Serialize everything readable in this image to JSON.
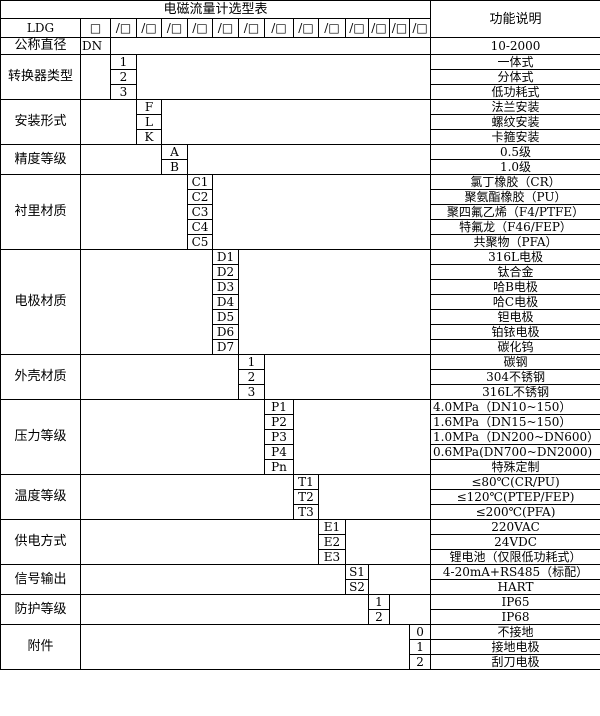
{
  "header": {
    "title": "电磁流量计选型表",
    "function_label": "功能说明",
    "model_prefix": "LDG",
    "first_box": "□",
    "slot_boxes": [
      "/□",
      "/□",
      "/□",
      "/□",
      "/□",
      "/□",
      "/□",
      "/□",
      "/□",
      "/□",
      "/□",
      "/□",
      "/□"
    ]
  },
  "nominal": {
    "label": "公称直径",
    "code": "DN",
    "desc": "10-2000"
  },
  "sections": [
    {
      "label": "转换器类型",
      "col": 2,
      "rows": [
        {
          "code": "1",
          "desc": "一体式"
        },
        {
          "code": "2",
          "desc": "分体式"
        },
        {
          "code": "3",
          "desc": "低功耗式"
        }
      ]
    },
    {
      "label": "安装形式",
      "col": 3,
      "rows": [
        {
          "code": "F",
          "desc": "法兰安装"
        },
        {
          "code": "L",
          "desc": "螺纹安装"
        },
        {
          "code": "K",
          "desc": "卡箍安装"
        }
      ]
    },
    {
      "label": "精度等级",
      "col": 4,
      "rows": [
        {
          "code": "A",
          "desc": "0.5级"
        },
        {
          "code": "B",
          "desc": "1.0级"
        }
      ]
    },
    {
      "label": "衬里材质",
      "col": 5,
      "rows": [
        {
          "code": "C1",
          "desc": "氯丁橡胶（CR）"
        },
        {
          "code": "C2",
          "desc": "聚氨酯橡胶（PU）"
        },
        {
          "code": "C3",
          "desc": "聚四氟乙烯（F4/PTFE）"
        },
        {
          "code": "C4",
          "desc": "特氟龙（F46/FEP）"
        },
        {
          "code": "C5",
          "desc": "共聚物（PFA）"
        }
      ]
    },
    {
      "label": "电极材质",
      "col": 6,
      "rows": [
        {
          "code": "D1",
          "desc": "316L电极"
        },
        {
          "code": "D2",
          "desc": "钛合金"
        },
        {
          "code": "D3",
          "desc": "哈B电极"
        },
        {
          "code": "D4",
          "desc": "哈C电极"
        },
        {
          "code": "D5",
          "desc": "钽电极"
        },
        {
          "code": "D6",
          "desc": "铂铱电极"
        },
        {
          "code": "D7",
          "desc": "碳化钨"
        }
      ]
    },
    {
      "label": "外壳材质",
      "col": 7,
      "rows": [
        {
          "code": "1",
          "desc": "碳钢"
        },
        {
          "code": "2",
          "desc": "304不锈钢"
        },
        {
          "code": "3",
          "desc": "316L不锈钢"
        }
      ]
    },
    {
      "label": "压力等级",
      "col": 8,
      "rows": [
        {
          "code": "P1",
          "desc": "4.0MPa（DN10~150）",
          "align": "left"
        },
        {
          "code": "P2",
          "desc": "1.6MPa（DN15~150）",
          "align": "left"
        },
        {
          "code": "P3",
          "desc": "1.0MPa（DN200~DN600）",
          "align": "left"
        },
        {
          "code": "P4",
          "desc": "0.6MPa(DN700~DN2000)",
          "align": "left"
        },
        {
          "code": "Pn",
          "desc": "特殊定制"
        }
      ]
    },
    {
      "label": "温度等级",
      "col": 9,
      "rows": [
        {
          "code": "T1",
          "desc": "≤80℃(CR/PU)"
        },
        {
          "code": "T2",
          "desc": "≤120℃(PTEP/FEP)"
        },
        {
          "code": "T3",
          "desc": "≤200℃(PFA)"
        }
      ]
    },
    {
      "label": "供电方式",
      "col": 10,
      "rows": [
        {
          "code": "E1",
          "desc": "220VAC"
        },
        {
          "code": "E2",
          "desc": "24VDC"
        },
        {
          "code": "E3",
          "desc": "锂电池（仅限低功耗式）"
        }
      ]
    },
    {
      "label": "信号输出",
      "col": 11,
      "rows": [
        {
          "code": "S1",
          "desc": "4-20mA+RS485（标配）"
        },
        {
          "code": "S2",
          "desc": "HART"
        }
      ]
    },
    {
      "label": "防护等级",
      "col": 12,
      "rows": [
        {
          "code": "1",
          "desc": "IP65"
        },
        {
          "code": "2",
          "desc": "IP68"
        }
      ]
    },
    {
      "label": "附件",
      "col": 14,
      "rows": [
        {
          "code": "0",
          "desc": "不接地"
        },
        {
          "code": "1",
          "desc": "接地电极"
        },
        {
          "code": "2",
          "desc": "刮刀电极"
        }
      ]
    }
  ]
}
